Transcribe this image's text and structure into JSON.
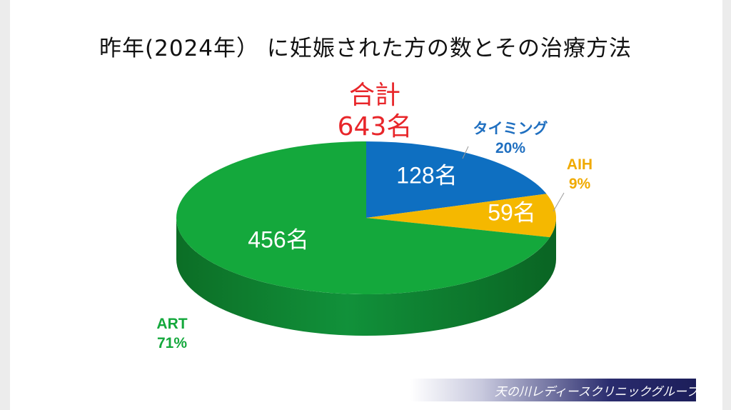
{
  "title": "昨年(2024年） に妊娠された方の数とその治療方法",
  "total": {
    "label": "合計",
    "value": "643名",
    "color": "#e8262a"
  },
  "footer": {
    "text": "天の川レディースクリニックグループ"
  },
  "chart_data": {
    "type": "pie",
    "title": "昨年(2024年） に妊娠された方の数とその治療方法",
    "total": 643,
    "unit": "名",
    "slices": [
      {
        "name": "タイミング",
        "value": 128,
        "percent": "20%",
        "count_label": "128名",
        "color": "#0e6fc1"
      },
      {
        "name": "AIH",
        "value": 59,
        "percent": "9%",
        "count_label": "59名",
        "color": "#f5b800"
      },
      {
        "name": "ART",
        "value": 456,
        "percent": "71%",
        "count_label": "456名",
        "color": "#14a83c"
      }
    ]
  }
}
